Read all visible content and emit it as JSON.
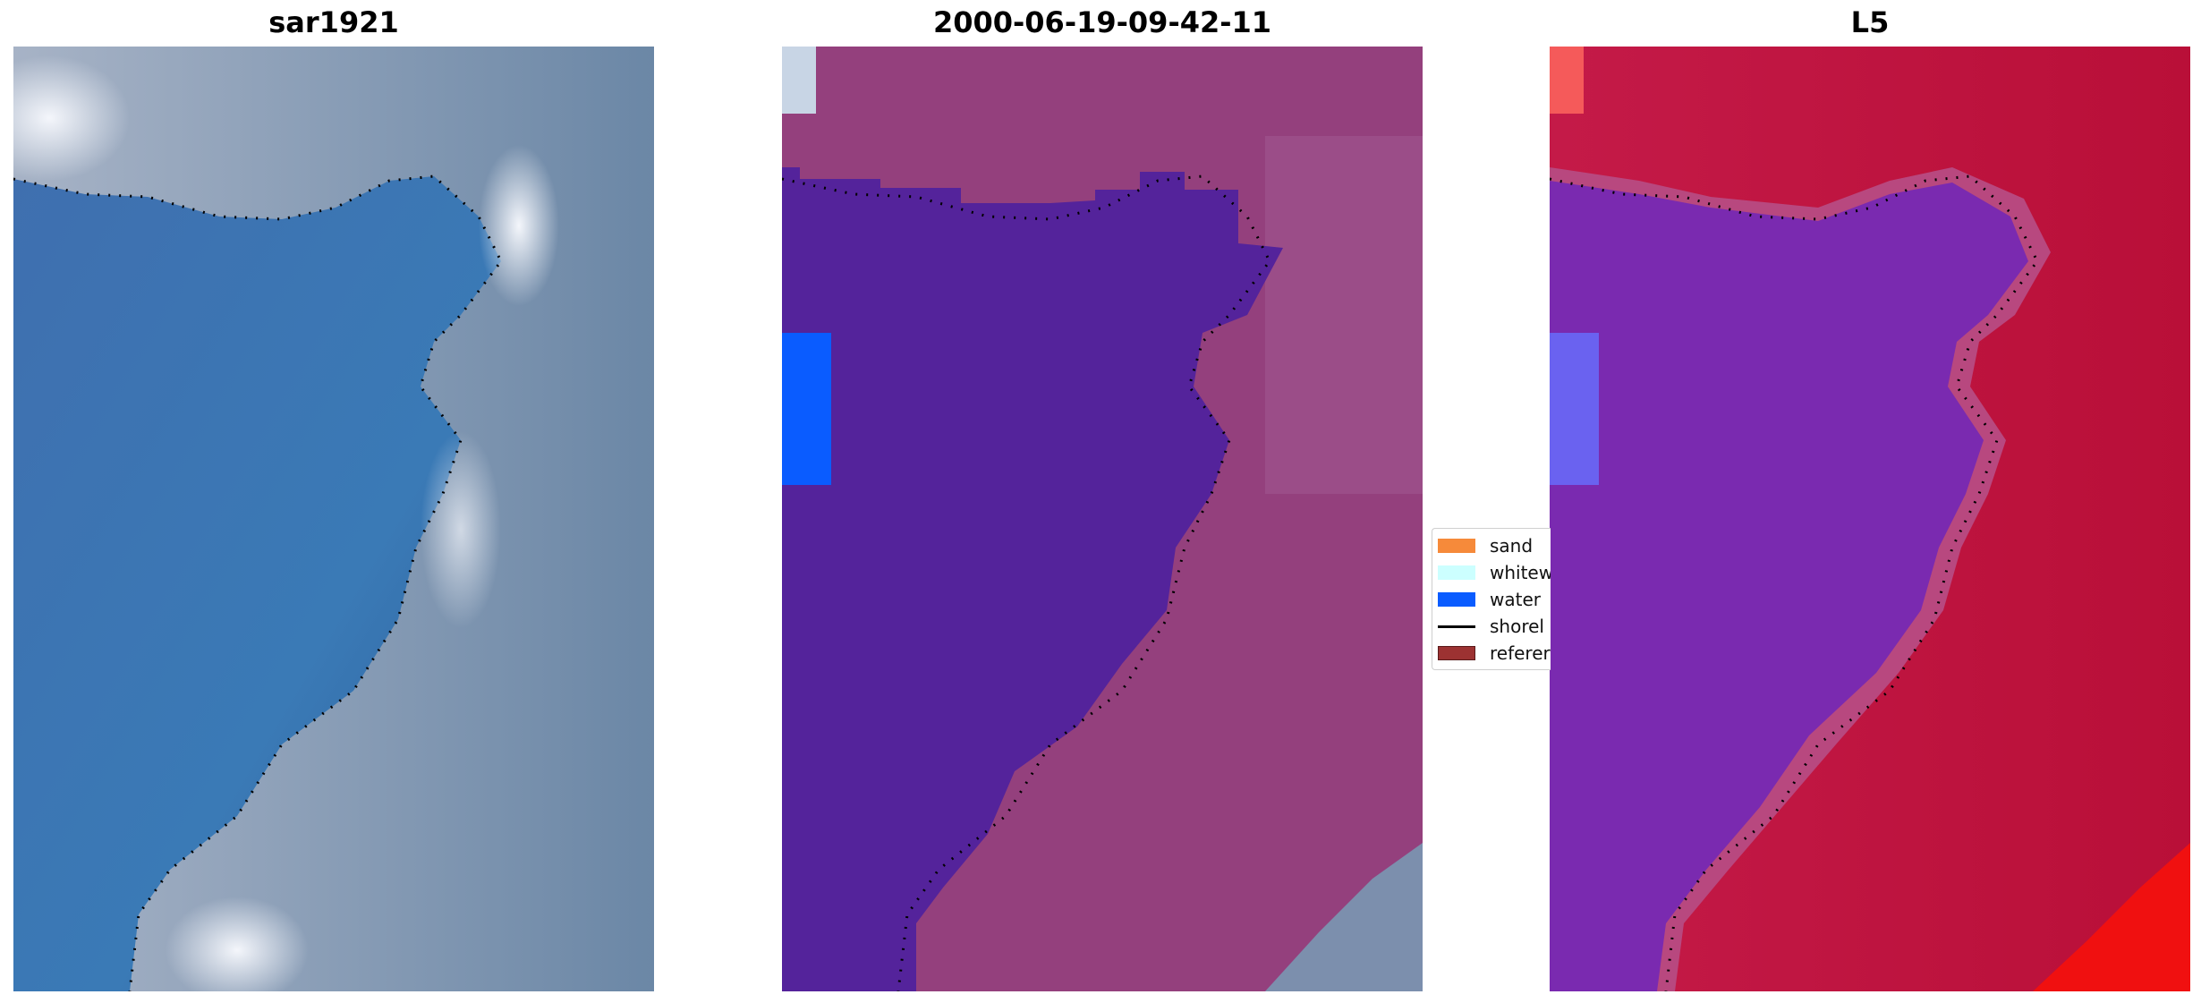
{
  "panels": [
    {
      "title": "sar1921"
    },
    {
      "title": "2000-06-19-09-42-11"
    },
    {
      "title": "L5"
    }
  ],
  "legend": {
    "items": [
      {
        "label": "sand",
        "color": "#f68a3a"
      },
      {
        "label": "whitew",
        "color": "#ccffff"
      },
      {
        "label": "water",
        "color": "#0a5cff"
      },
      {
        "label": "shorel",
        "color": "#000000"
      },
      {
        "label": "referer",
        "color": "#9c3232"
      }
    ]
  },
  "colors": {
    "water_class": "#54239b",
    "land_overlay": "#9a4a86",
    "sea_rgb": "#3f78b5",
    "land_rgb": "#8aa0b8",
    "heat_high": "#c2123e",
    "heat_low": "#6a1fb0"
  }
}
